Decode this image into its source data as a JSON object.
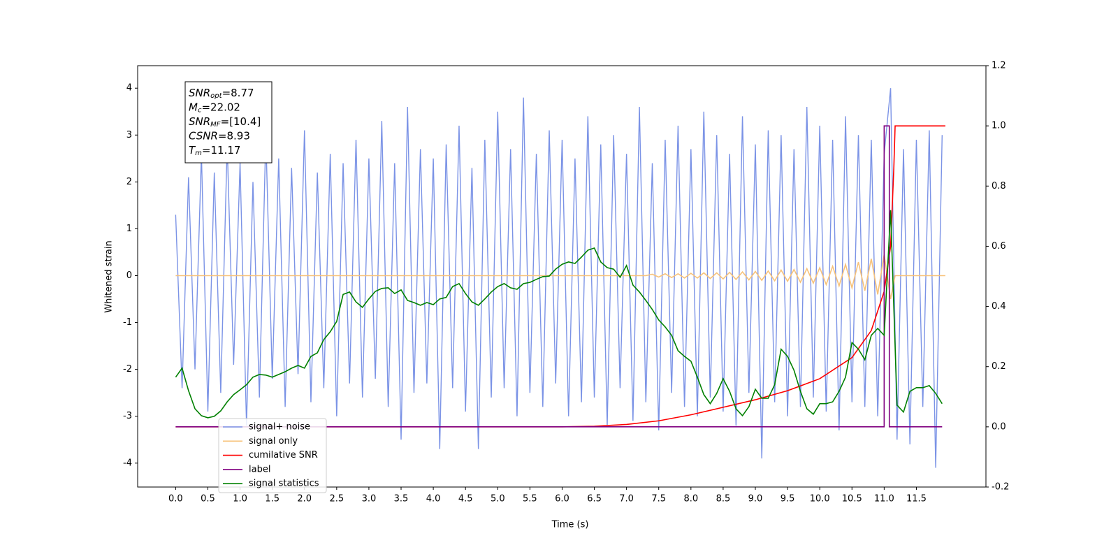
{
  "chart_data": {
    "type": "line",
    "xlabel": "Time (s)",
    "ylabel": "Whitened strain",
    "xlim": [
      -0.59,
      12.58
    ],
    "ylim": [
      -4.51,
      4.48
    ],
    "y2lim": [
      -0.2,
      1.2
    ],
    "xticks": [
      {
        "value": 0,
        "label": "0.0"
      },
      0.5,
      {
        "value": 1,
        "label": "1.0"
      },
      1.5,
      {
        "value": 2,
        "label": "2.0"
      },
      2.5,
      {
        "value": 3,
        "label": "3.0"
      },
      3.5,
      {
        "value": 4,
        "label": "4.0"
      },
      4.5,
      {
        "value": 5,
        "label": "5.0"
      },
      5.5,
      {
        "value": 6,
        "label": "6.0"
      },
      6.5,
      {
        "value": 7,
        "label": "7.0"
      },
      7.5,
      {
        "value": 8,
        "label": "8.0"
      },
      8.5,
      {
        "value": 9,
        "label": "9.0"
      },
      9.5,
      {
        "value": 10,
        "label": "10.0"
      },
      10.5,
      {
        "value": 11,
        "label": "11.0"
      },
      11.5
    ],
    "yticks": [
      -4,
      -3,
      -2,
      -1,
      0,
      1,
      2,
      3,
      4
    ],
    "y2ticks": [
      -0.2,
      {
        "value": 0,
        "label": "0.0"
      },
      0.2,
      0.4,
      0.6,
      0.8,
      {
        "value": 1,
        "label": "1.0"
      },
      1.2
    ],
    "annotations": [
      {
        "main": "SNR",
        "sub": "opt",
        "text": "=8.77"
      },
      {
        "main": "M",
        "sub": "c",
        "text": "=22.02"
      },
      {
        "main": "SNR",
        "sub": "MF",
        "text": "=[10.4]"
      },
      {
        "main": "CSNR",
        "sub": "",
        "text": "=8.93"
      },
      {
        "main": "T",
        "sub": "m",
        "text": "=11.17"
      }
    ],
    "x": [
      0,
      0.1,
      0.2,
      0.3,
      0.4,
      0.5,
      0.6,
      0.7,
      0.8,
      0.9,
      1,
      1.1,
      1.2,
      1.3,
      1.4,
      1.5,
      1.6,
      1.7,
      1.8,
      1.9,
      2,
      2.1,
      2.2,
      2.3,
      2.4,
      2.5,
      2.6,
      2.7,
      2.8,
      2.9,
      3,
      3.1,
      3.2,
      3.3,
      3.4,
      3.5,
      3.6,
      3.7,
      3.8,
      3.9,
      4,
      4.1,
      4.2,
      4.3,
      4.4,
      4.5,
      4.6,
      4.7,
      4.8,
      4.9,
      5,
      5.1,
      5.2,
      5.3,
      5.4,
      5.5,
      5.6,
      5.7,
      5.8,
      5.9,
      6,
      6.1,
      6.2,
      6.3,
      6.4,
      6.5,
      6.6,
      6.7,
      6.8,
      6.9,
      7,
      7.1,
      7.2,
      7.3,
      7.4,
      7.5,
      7.6,
      7.7,
      7.8,
      7.9,
      8,
      8.1,
      8.2,
      8.3,
      8.4,
      8.5,
      8.6,
      8.7,
      8.8,
      8.9,
      9,
      9.1,
      9.2,
      9.3,
      9.4,
      9.5,
      9.6,
      9.7,
      9.8,
      9.9,
      10,
      10.1,
      10.2,
      10.3,
      10.4,
      10.5,
      10.6,
      10.7,
      10.8,
      10.9,
      11,
      11.1,
      11.2,
      11.3,
      11.4,
      11.5,
      11.6,
      11.7,
      11.8,
      11.9
    ],
    "series": [
      {
        "name": "signal+ noise",
        "color": "#7b93e6",
        "values": [
          1.3,
          -2.4,
          2.1,
          -2.0,
          2.6,
          -2.9,
          2.2,
          -2.5,
          2.8,
          -1.9,
          2.4,
          -3.2,
          2.0,
          -2.6,
          3.0,
          -2.2,
          2.5,
          -2.8,
          2.3,
          -2.1,
          3.1,
          -2.7,
          2.2,
          -2.4,
          2.6,
          -3.0,
          2.4,
          -2.3,
          2.9,
          -2.6,
          2.5,
          -2.2,
          3.3,
          -2.8,
          2.4,
          -3.5,
          3.6,
          -2.5,
          2.7,
          -2.3,
          2.5,
          -3.7,
          2.8,
          -2.4,
          3.2,
          -2.9,
          2.3,
          -3.7,
          2.9,
          -2.6,
          3.5,
          -2.4,
          2.7,
          -3.0,
          3.8,
          -2.5,
          2.6,
          -2.8,
          3.1,
          -2.3,
          2.9,
          -3.0,
          2.5,
          -2.7,
          3.4,
          -2.6,
          2.8,
          -3.2,
          3.0,
          -2.4,
          2.6,
          -3.1,
          3.6,
          -2.7,
          2.4,
          -3.3,
          2.9,
          -2.5,
          3.2,
          -2.8,
          2.7,
          -3.0,
          3.5,
          -2.6,
          3.0,
          -2.9,
          2.6,
          -3.2,
          3.4,
          -2.5,
          2.8,
          -3.9,
          3.1,
          -2.7,
          3.0,
          -3.0,
          2.7,
          -2.8,
          3.6,
          -2.6,
          3.2,
          -2.9,
          2.9,
          -3.3,
          3.4,
          -2.7,
          3.0,
          -2.8,
          2.9,
          -3.0,
          2.6,
          4.0,
          -3.5,
          2.7,
          -3.6,
          2.9,
          -2.8,
          3.1,
          -4.1,
          3.0
        ]
      },
      {
        "name": "signal only",
        "color": "#f7c27a",
        "x": [
          0,
          7.3,
          7.4,
          7.5,
          7.6,
          7.7,
          7.8,
          7.9,
          8,
          8.1,
          8.2,
          8.3,
          8.4,
          8.5,
          8.6,
          8.7,
          8.8,
          8.9,
          9,
          9.1,
          9.2,
          9.3,
          9.4,
          9.5,
          9.6,
          9.7,
          9.8,
          9.9,
          10,
          10.1,
          10.2,
          10.3,
          10.4,
          10.5,
          10.6,
          10.7,
          10.8,
          10.9,
          11,
          11.1,
          11.17,
          11.95
        ],
        "values": [
          0,
          0,
          0.03,
          -0.03,
          0.04,
          -0.04,
          0.04,
          -0.05,
          0.05,
          -0.05,
          0.06,
          -0.06,
          0.06,
          -0.07,
          0.07,
          -0.08,
          0.08,
          -0.09,
          0.09,
          -0.1,
          0.1,
          -0.11,
          0.12,
          -0.12,
          0.13,
          -0.14,
          0.15,
          -0.16,
          0.17,
          -0.19,
          0.2,
          -0.22,
          0.24,
          -0.26,
          0.29,
          -0.32,
          0.36,
          -0.4,
          0.45,
          -0.5,
          0,
          0
        ]
      },
      {
        "name": "cumilative SNR",
        "color": "#ff0000",
        "axis": "y2",
        "x": [
          0,
          6,
          6.5,
          7,
          7.5,
          8,
          8.5,
          9,
          9.5,
          10,
          10.5,
          10.8,
          11,
          11.1,
          11.15,
          11.17,
          11.95
        ],
        "values": [
          0,
          0,
          0.002,
          0.008,
          0.02,
          0.04,
          0.065,
          0.09,
          0.12,
          0.16,
          0.23,
          0.32,
          0.45,
          0.6,
          0.86,
          1,
          1
        ]
      },
      {
        "name": "label",
        "color": "#800080",
        "axis": "y2",
        "x": [
          0,
          11,
          11,
          11.08,
          11.08,
          11.9
        ],
        "values": [
          0,
          0,
          1,
          1,
          0,
          0
        ]
      },
      {
        "name": "signal statistics",
        "color": "#008000",
        "axis": "y2",
        "values": [
          0.165,
          0.195,
          0.12,
          0.06,
          0.037,
          0.03,
          0.035,
          0.053,
          0.083,
          0.107,
          0.123,
          0.14,
          0.165,
          0.174,
          0.172,
          0.165,
          0.174,
          0.183,
          0.195,
          0.204,
          0.195,
          0.234,
          0.246,
          0.29,
          0.316,
          0.35,
          0.44,
          0.448,
          0.415,
          0.397,
          0.425,
          0.45,
          0.46,
          0.462,
          0.443,
          0.455,
          0.42,
          0.413,
          0.404,
          0.413,
          0.406,
          0.425,
          0.43,
          0.466,
          0.476,
          0.443,
          0.415,
          0.404,
          0.425,
          0.448,
          0.466,
          0.476,
          0.462,
          0.457,
          0.476,
          0.48,
          0.49,
          0.499,
          0.501,
          0.524,
          0.54,
          0.548,
          0.543,
          0.564,
          0.587,
          0.594,
          0.548,
          0.529,
          0.524,
          0.497,
          0.536,
          0.471,
          0.448,
          0.42,
          0.39,
          0.355,
          0.332,
          0.304,
          0.253,
          0.234,
          0.218,
          0.165,
          0.107,
          0.077,
          0.111,
          0.16,
          0.118,
          0.06,
          0.037,
          0.067,
          0.125,
          0.095,
          0.095,
          0.14,
          0.258,
          0.234,
          0.188,
          0.118,
          0.06,
          0.042,
          0.077,
          0.077,
          0.083,
          0.118,
          0.165,
          0.28,
          0.258,
          0.223,
          0.304,
          0.327,
          0.304,
          0.72,
          0.072,
          0.049,
          0.118,
          0.13,
          0.13,
          0.137,
          0.111,
          0.077
        ]
      }
    ]
  }
}
